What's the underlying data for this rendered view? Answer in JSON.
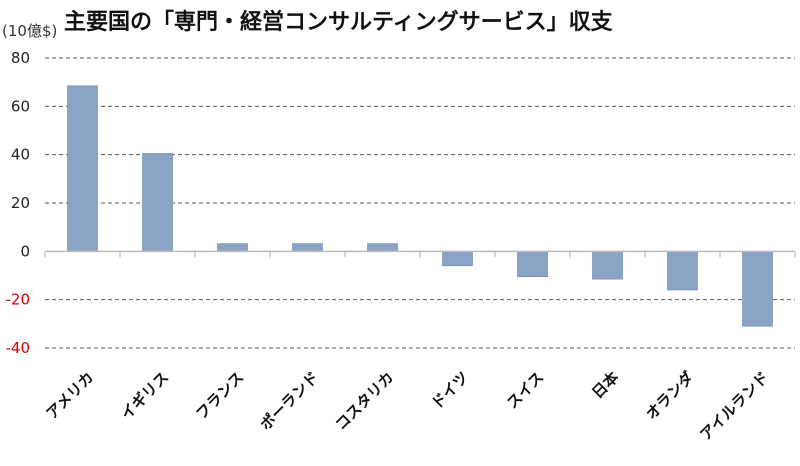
{
  "chart_data": {
    "type": "bar",
    "title": "主要国の「専門・経営コンサルティングサービス」収支",
    "ylabel": "(10億$)",
    "categories": [
      "アメリカ",
      "イギリス",
      "フランス",
      "ポーランド",
      "コスタリカ",
      "ドイツ",
      "スイス",
      "日本",
      "オランダ",
      "アイルランド"
    ],
    "values": [
      68.5,
      40.5,
      3.2,
      3.2,
      3.2,
      -6.0,
      -10.5,
      -11.5,
      -16.0,
      -31.0
    ],
    "ylim": [
      -40,
      80
    ],
    "yticks": [
      80,
      60,
      40,
      20,
      0,
      -20,
      -40
    ],
    "yticks_labels": [
      "80",
      "60",
      "40",
      "20",
      "0",
      "-20",
      "-40"
    ],
    "grid": true,
    "bar_color": "#8aa3c4",
    "negative_tick_color": "#e00000"
  }
}
